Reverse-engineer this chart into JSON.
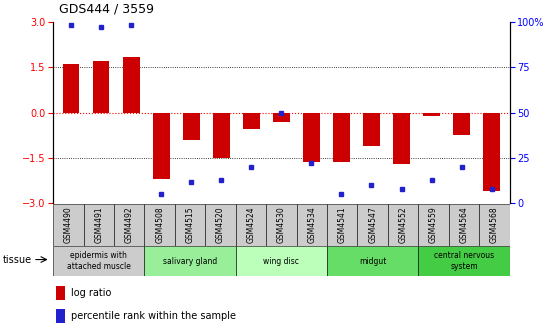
{
  "title": "GDS444 / 3559",
  "samples": [
    "GSM4490",
    "GSM4491",
    "GSM4492",
    "GSM4508",
    "GSM4515",
    "GSM4520",
    "GSM4524",
    "GSM4530",
    "GSM4534",
    "GSM4541",
    "GSM4547",
    "GSM4552",
    "GSM4559",
    "GSM4564",
    "GSM4568"
  ],
  "log_ratios": [
    1.6,
    1.7,
    1.85,
    -2.2,
    -0.9,
    -1.5,
    -0.55,
    -0.3,
    -1.65,
    -1.65,
    -1.1,
    -1.7,
    -0.1,
    -0.75,
    -2.6
  ],
  "percentile_ranks": [
    98,
    97,
    98,
    5,
    12,
    13,
    20,
    50,
    22,
    5,
    10,
    8,
    13,
    20,
    8
  ],
  "bar_color": "#cc0000",
  "dot_color": "#2222cc",
  "ylim_left": [
    -3,
    3
  ],
  "yticks_left": [
    -3,
    -1.5,
    0,
    1.5,
    3
  ],
  "ylim_right": [
    0,
    100
  ],
  "yticks_right": [
    0,
    25,
    50,
    75,
    100
  ],
  "tissue_groups": [
    {
      "label": "epidermis with\nattached muscle",
      "start": 0,
      "end": 3,
      "color": "#cccccc"
    },
    {
      "label": "salivary gland",
      "start": 3,
      "end": 6,
      "color": "#99ee99"
    },
    {
      "label": "wing disc",
      "start": 6,
      "end": 9,
      "color": "#bbffbb"
    },
    {
      "label": "midgut",
      "start": 9,
      "end": 12,
      "color": "#66dd66"
    },
    {
      "label": "central nervous\nsystem",
      "start": 12,
      "end": 15,
      "color": "#44cc44"
    }
  ],
  "bar_width": 0.55,
  "sample_box_color": "#cccccc",
  "background_color": "#ffffff"
}
